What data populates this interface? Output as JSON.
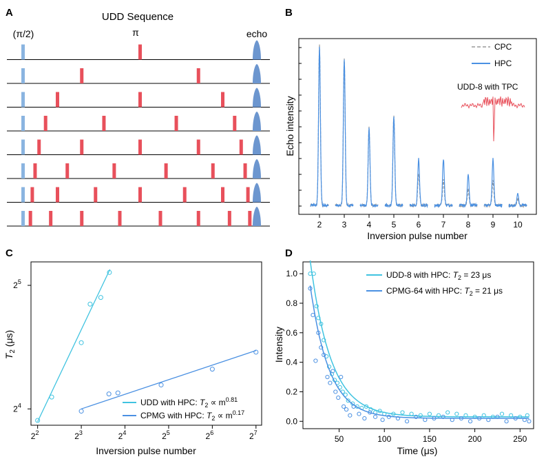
{
  "panels": {
    "A": "A",
    "B": "B",
    "C": "C",
    "D": "D"
  },
  "panel_a": {
    "title": "UDD Sequence",
    "label_pi2": "(π/2)",
    "label_pi": "π",
    "label_echo": "echo",
    "colors": {
      "pi2": "#8ab4e0",
      "pi": "#e8505b",
      "echo": "#6c96cf"
    },
    "rows": [
      {
        "n": 1,
        "pulses": [
          0.5
        ]
      },
      {
        "n": 2,
        "pulses": [
          0.25,
          0.75
        ]
      },
      {
        "n": 3,
        "pulses": [
          0.146,
          0.5,
          0.854
        ]
      },
      {
        "n": 4,
        "pulses": [
          0.095,
          0.345,
          0.655,
          0.905
        ]
      },
      {
        "n": 5,
        "pulses": [
          0.067,
          0.25,
          0.5,
          0.75,
          0.933
        ]
      },
      {
        "n": 6,
        "pulses": [
          0.05,
          0.188,
          0.389,
          0.611,
          0.812,
          0.95
        ]
      },
      {
        "n": 7,
        "pulses": [
          0.038,
          0.146,
          0.309,
          0.5,
          0.691,
          0.854,
          0.962
        ]
      },
      {
        "n": 8,
        "pulses": [
          0.03,
          0.117,
          0.25,
          0.413,
          0.587,
          0.75,
          0.883,
          0.97
        ]
      }
    ]
  },
  "chart_data": [
    {
      "panel": "B",
      "type": "line",
      "xlabel": "Inversion pulse number",
      "ylabel": "Echo intensity",
      "categories": [
        "2",
        "3",
        "4",
        "5",
        "6",
        "7",
        "8",
        "9",
        "10"
      ],
      "series": [
        {
          "name": "CPC",
          "color": "#999999",
          "values": [
            1.0,
            0.92,
            0.49,
            0.56,
            0.2,
            0.16,
            0.1,
            0.15,
            0.04
          ]
        },
        {
          "name": "HPC",
          "color": "#4a90e2",
          "values": [
            1.0,
            0.92,
            0.49,
            0.56,
            0.29,
            0.29,
            0.19,
            0.29,
            0.07
          ]
        }
      ],
      "annotation": {
        "text": "UDD-8 with TPC",
        "color": "#e8505b"
      }
    },
    {
      "panel": "C",
      "type": "scatter",
      "xlabel": "Inversion pulse number",
      "ylabel": "T₂ (μs)",
      "x_scale": "log2",
      "y_scale": "log2",
      "xticks": [
        {
          "base": "2",
          "exp": "2",
          "value": 4
        },
        {
          "base": "2",
          "exp": "3",
          "value": 8
        },
        {
          "base": "2",
          "exp": "4",
          "value": 16
        },
        {
          "base": "2",
          "exp": "5",
          "value": 32
        },
        {
          "base": "2",
          "exp": "6",
          "value": 64
        },
        {
          "base": "2",
          "exp": "7",
          "value": 128
        }
      ],
      "yticks": [
        {
          "base": "2",
          "exp": "4",
          "value": 16
        },
        {
          "base": "2",
          "exp": "5",
          "value": 32
        }
      ],
      "series": [
        {
          "name": "UDD with HPC",
          "legend_prefix": "UDD with HPC: ",
          "legend_exp": "0.81",
          "color": "#3fc3e0",
          "points": [
            [
              4,
              15.0
            ],
            [
              5,
              17.1
            ],
            [
              8,
              23.2
            ],
            [
              9.2,
              28.8
            ],
            [
              10.9,
              29.9
            ],
            [
              12.5,
              34.4
            ]
          ],
          "fit": [
            [
              4,
              14.9
            ],
            [
              12.6,
              35.0
            ]
          ]
        },
        {
          "name": "CPMG with HPC",
          "legend_prefix": "CPMG with HPC: ",
          "legend_exp": "0.17",
          "color": "#4a90e2",
          "points": [
            [
              8,
              15.8
            ],
            [
              12.4,
              17.4
            ],
            [
              14.3,
              17.5
            ],
            [
              28.4,
              18.3
            ],
            [
              64,
              20.0
            ],
            [
              128,
              22.0
            ]
          ],
          "fit": [
            [
              8,
              16.0
            ],
            [
              128,
              22.2
            ]
          ]
        }
      ],
      "legend_suffix": "∝ m",
      "legend_t": "T",
      "legend_sub": "2"
    },
    {
      "panel": "D",
      "type": "scatter",
      "xlabel": "Time (μs)",
      "ylabel": "Intensity",
      "xlim": [
        10,
        265
      ],
      "ylim": [
        -0.05,
        1.08
      ],
      "xticks": [
        50,
        100,
        150,
        200,
        250
      ],
      "yticks": [
        "0.0",
        "0.2",
        "0.4",
        "0.6",
        "0.8",
        "1.0"
      ],
      "series": [
        {
          "name": "UDD-8 with HPC",
          "legend_prefix": "UDD-8 with HPC: ",
          "legend_value": "= 23 μs",
          "color": "#3fc3e0",
          "tau": 23,
          "x0": 18,
          "amp": 1.06,
          "offset": 0.03,
          "points": [
            [
              18,
              1.0
            ],
            [
              22,
              1.0
            ],
            [
              25,
              0.78
            ],
            [
              27,
              0.7
            ],
            [
              30,
              0.66
            ],
            [
              33,
              0.55
            ],
            [
              36,
              0.44
            ],
            [
              39,
              0.37
            ],
            [
              42,
              0.32
            ],
            [
              45,
              0.28
            ],
            [
              48,
              0.26
            ],
            [
              51,
              0.23
            ],
            [
              54,
              0.2
            ],
            [
              57,
              0.18
            ],
            [
              60,
              0.14
            ],
            [
              65,
              0.12
            ],
            [
              70,
              0.1
            ],
            [
              75,
              0.09
            ],
            [
              80,
              0.1
            ],
            [
              85,
              0.08
            ],
            [
              90,
              0.06
            ],
            [
              95,
              0.07
            ],
            [
              100,
              0.05
            ],
            [
              110,
              0.05
            ],
            [
              120,
              0.06
            ],
            [
              130,
              0.05
            ],
            [
              140,
              0.04
            ],
            [
              150,
              0.05
            ],
            [
              160,
              0.04
            ],
            [
              170,
              0.06
            ],
            [
              180,
              0.05
            ],
            [
              190,
              0.04
            ],
            [
              200,
              0.03
            ],
            [
              210,
              0.04
            ],
            [
              220,
              0.03
            ],
            [
              230,
              0.05
            ],
            [
              240,
              0.04
            ],
            [
              250,
              0.03
            ],
            [
              258,
              0.04
            ]
          ]
        },
        {
          "name": "CPMG-64 with HPC",
          "legend_prefix": "CPMG-64 with HPC: ",
          "legend_value": "= 21 μs",
          "color": "#4a90e2",
          "tau": 21,
          "x0": 18,
          "amp": 0.9,
          "offset": 0.02,
          "points": [
            [
              18,
              0.9
            ],
            [
              21,
              0.72
            ],
            [
              24,
              0.41
            ],
            [
              27,
              0.6
            ],
            [
              30,
              0.5
            ],
            [
              33,
              0.45
            ],
            [
              37,
              0.3
            ],
            [
              40,
              0.26
            ],
            [
              43,
              0.34
            ],
            [
              46,
              0.2
            ],
            [
              49,
              0.16
            ],
            [
              52,
              0.3
            ],
            [
              55,
              0.1
            ],
            [
              58,
              0.08
            ],
            [
              62,
              0.04
            ],
            [
              66,
              0.1
            ],
            [
              72,
              0.05
            ],
            [
              78,
              0.02
            ],
            [
              84,
              0.06
            ],
            [
              90,
              0.03
            ],
            [
              98,
              0.01
            ],
            [
              105,
              0.03
            ],
            [
              115,
              0.02
            ],
            [
              125,
              0.0
            ],
            [
              135,
              0.03
            ],
            [
              145,
              0.01
            ],
            [
              155,
              0.02
            ],
            [
              165,
              0.03
            ],
            [
              175,
              0.01
            ],
            [
              185,
              0.02
            ],
            [
              195,
              0.0
            ],
            [
              205,
              0.02
            ],
            [
              215,
              0.01
            ],
            [
              225,
              0.03
            ],
            [
              235,
              0.0
            ],
            [
              245,
              0.02
            ],
            [
              255,
              0.01
            ],
            [
              260,
              0.0
            ]
          ]
        }
      ],
      "legend_t": "T",
      "legend_sub": "2"
    }
  ]
}
